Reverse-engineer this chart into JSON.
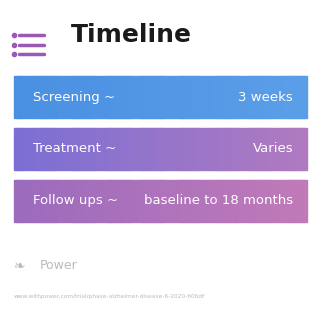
{
  "title": "Timeline",
  "title_icon_color": "#9b59b6",
  "background_color": "#ffffff",
  "rows": [
    {
      "label": "Screening ~",
      "value": "3 weeks",
      "color_left": "#4a90e2",
      "color_right": "#5b9ee8"
    },
    {
      "label": "Treatment ~",
      "value": "Varies",
      "color_left": "#7b6fd4",
      "color_right": "#b07ac0"
    },
    {
      "label": "Follow ups ~",
      "value": "baseline to 18 months",
      "color_left": "#9b6bbd",
      "color_right": "#c07ab8"
    }
  ],
  "watermark_text": "Power",
  "url_text": "www.withpower.com/trial/phase-alzheimer-disease-6-2020-606df",
  "watermark_color": "#bbbbbb",
  "url_color": "#bbbbbb"
}
